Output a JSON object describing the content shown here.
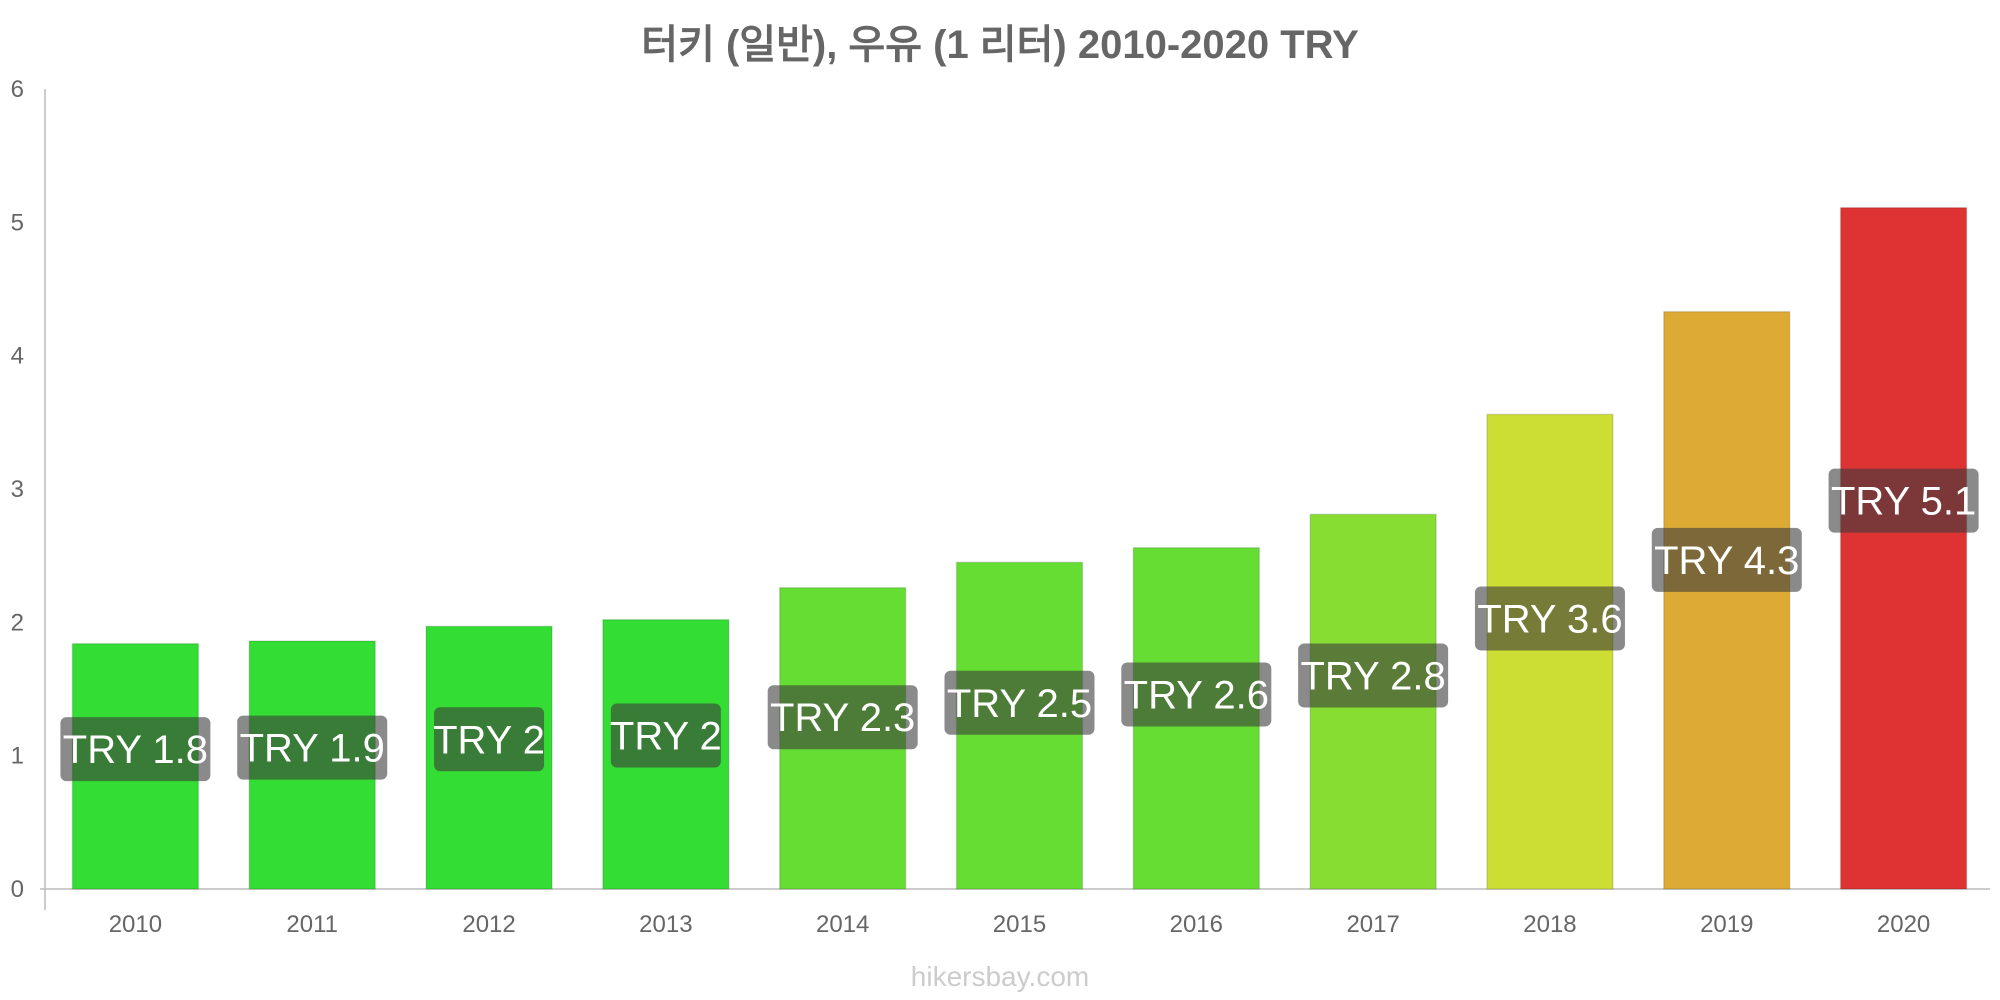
{
  "chart_data": {
    "type": "bar",
    "title": "터키 (일반), 우유 (1 리터) 2010-2020 TRY",
    "categories": [
      "2010",
      "2011",
      "2012",
      "2013",
      "2014",
      "2015",
      "2016",
      "2017",
      "2018",
      "2019",
      "2020"
    ],
    "values": [
      1.84,
      1.86,
      1.97,
      2.02,
      2.26,
      2.45,
      2.56,
      2.81,
      3.56,
      4.33,
      5.11
    ],
    "data_labels": [
      "TRY 1.8",
      "TRY 1.9",
      "TRY 2",
      "TRY 2",
      "TRY 2.3",
      "TRY 2.5",
      "TRY 2.6",
      "TRY 2.8",
      "TRY 3.6",
      "TRY 4.3",
      "TRY 5.1"
    ],
    "colors": [
      "#33dd33",
      "#33dd33",
      "#33dd33",
      "#33dd33",
      "#66dd33",
      "#66dd33",
      "#66dd33",
      "#88dd33",
      "#ccdd33",
      "#ddaa33",
      "#dd3333"
    ],
    "label_bg_colors": [
      "#1a6e1a",
      "#1a6e1a",
      "#1a6e1a",
      "#1a6e1a",
      "#336e1a",
      "#336e1a",
      "#336e1a",
      "#446e1a",
      "#666e1a",
      "#6e551a",
      "#6e1a1a"
    ],
    "ylim": [
      0,
      6
    ],
    "yticks": [
      0,
      1,
      2,
      3,
      4,
      5,
      6
    ],
    "xlabel": "",
    "ylabel": "",
    "grid": false,
    "legend": "none"
  },
  "watermark": "hikersbay.com"
}
